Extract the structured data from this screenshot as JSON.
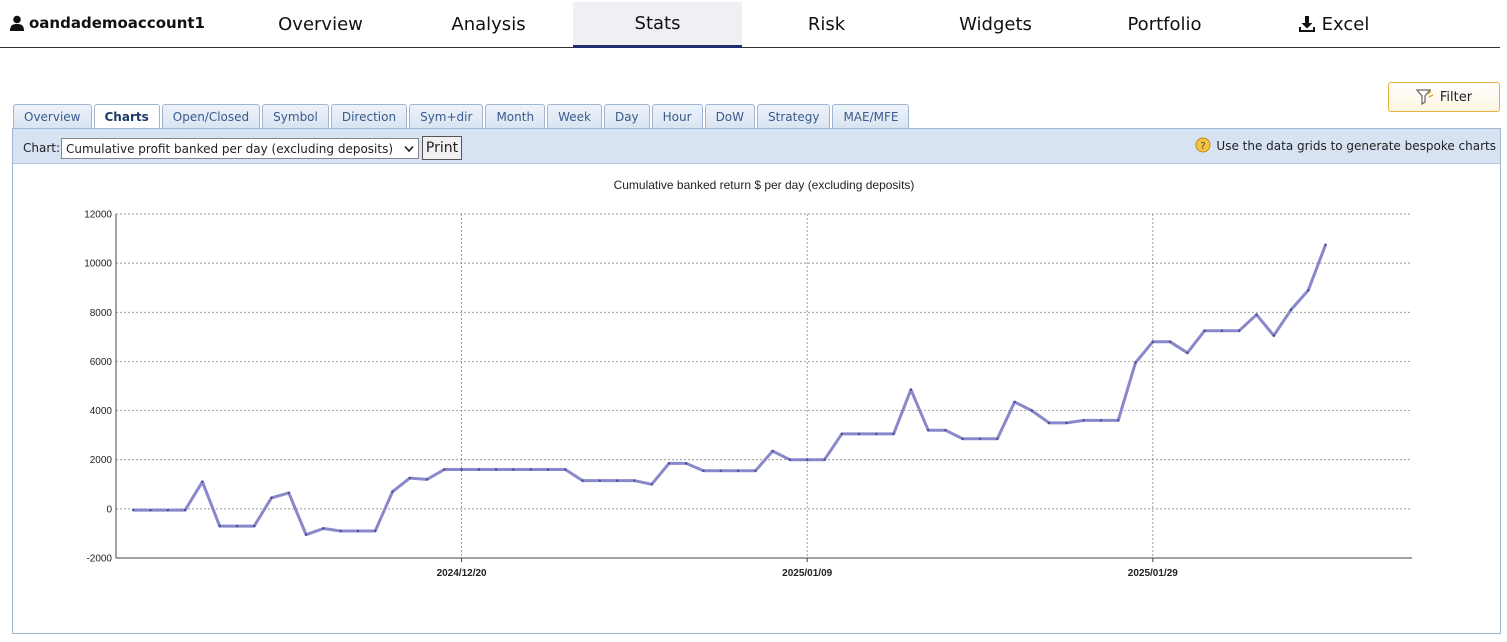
{
  "account": {
    "name": "oandademoaccount1"
  },
  "nav": [
    {
      "label": "Overview"
    },
    {
      "label": "Analysis"
    },
    {
      "label": "Stats"
    },
    {
      "label": "Risk"
    },
    {
      "label": "Widgets"
    },
    {
      "label": "Portfolio"
    },
    {
      "label": "Excel"
    }
  ],
  "filter": {
    "label": "Filter"
  },
  "tabs": [
    {
      "label": "Overview"
    },
    {
      "label": "Charts"
    },
    {
      "label": "Open/Closed"
    },
    {
      "label": "Symbol"
    },
    {
      "label": "Direction"
    },
    {
      "label": "Sym+dir"
    },
    {
      "label": "Month"
    },
    {
      "label": "Week"
    },
    {
      "label": "Day"
    },
    {
      "label": "Hour"
    },
    {
      "label": "DoW"
    },
    {
      "label": "Strategy"
    },
    {
      "label": "MAE/MFE"
    }
  ],
  "toolbar": {
    "chart_label": "Chart:",
    "selected_chart": "Cumulative profit banked per day (excluding deposits)",
    "print_label": "Print",
    "hint": "Use the data grids to generate bespoke charts"
  },
  "colors": {
    "line": "#7b7bc4",
    "accent": "#1e2e6e"
  },
  "chart_data": {
    "type": "line",
    "title": "Cumulative banked return $ per day (excluding deposits)",
    "ylim": [
      -2000,
      12000
    ],
    "yticks": [
      12000,
      10000,
      8000,
      6000,
      4000,
      2000,
      0,
      -2000
    ],
    "xticks": [
      {
        "label": "2024/12/20",
        "date": "2024-12-20"
      },
      {
        "label": "2025/01/09",
        "date": "2025-01-09"
      },
      {
        "label": "2025/01/29",
        "date": "2025-01-29"
      }
    ],
    "xlim": [
      "2024-11-30",
      "2025-02-13"
    ],
    "grid": true,
    "series": [
      {
        "x": [
          "2024-12-01",
          "2024-12-02",
          "2024-12-03",
          "2024-12-04",
          "2024-12-05",
          "2024-12-06",
          "2024-12-07",
          "2024-12-08",
          "2024-12-09",
          "2024-12-10",
          "2024-12-11",
          "2024-12-12",
          "2024-12-13",
          "2024-12-14",
          "2024-12-15",
          "2024-12-16",
          "2024-12-17",
          "2024-12-18",
          "2024-12-19",
          "2024-12-20",
          "2024-12-21",
          "2024-12-22",
          "2024-12-23",
          "2024-12-24",
          "2024-12-25",
          "2024-12-26",
          "2024-12-27",
          "2024-12-28",
          "2024-12-29",
          "2024-12-30",
          "2024-12-31",
          "2025-01-01",
          "2025-01-02",
          "2025-01-03",
          "2025-01-04",
          "2025-01-05",
          "2025-01-06",
          "2025-01-07",
          "2025-01-08",
          "2025-01-09",
          "2025-01-10",
          "2025-01-11",
          "2025-01-12",
          "2025-01-13",
          "2025-01-14",
          "2025-01-15",
          "2025-01-16",
          "2025-01-17",
          "2025-01-18",
          "2025-01-19",
          "2025-01-20",
          "2025-01-21",
          "2025-01-22",
          "2025-01-23",
          "2025-01-24",
          "2025-01-25",
          "2025-01-26",
          "2025-01-27",
          "2025-01-28",
          "2025-01-29",
          "2025-01-30",
          "2025-01-31",
          "2025-02-01",
          "2025-02-02",
          "2025-02-03",
          "2025-02-04",
          "2025-02-05",
          "2025-02-06",
          "2025-02-07",
          "2025-02-08"
        ],
        "values": [
          -50,
          -50,
          -50,
          -50,
          1100,
          -700,
          -700,
          -700,
          450,
          650,
          -1050,
          -800,
          -900,
          -900,
          -900,
          700,
          1250,
          1200,
          1600,
          1600,
          1600,
          1600,
          1600,
          1600,
          1600,
          1600,
          1150,
          1150,
          1150,
          1150,
          1000,
          1850,
          1850,
          1550,
          1550,
          1550,
          1550,
          2350,
          2000,
          2000,
          2000,
          3050,
          3050,
          3050,
          3050,
          4850,
          3200,
          3200,
          2850,
          2850,
          2850,
          4350,
          4000,
          3500,
          3500,
          3600,
          3600,
          3600,
          5950,
          6800,
          6800,
          6350,
          7250,
          7250,
          7250,
          7900,
          7050,
          8100,
          8900,
          10750
        ]
      }
    ]
  }
}
